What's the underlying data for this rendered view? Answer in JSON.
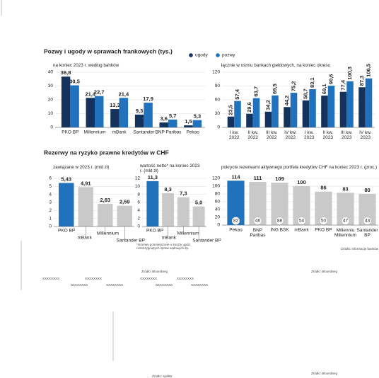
{
  "sections": [
    {
      "title": "Pozwy i ugody w sprawach frankowych (tys.)"
    },
    {
      "title": "Rezerwy na ryzyko prawne kredytów w CHF"
    }
  ],
  "chart_data": [
    {
      "type": "bar",
      "subtitle": "na koniec 2023 r. według banków",
      "categories": [
        "PKO BP",
        "Millennium",
        "mBank",
        "Santander",
        "BNP Paribas",
        "Pekao"
      ],
      "series": [
        {
          "name": "ugody",
          "color": "#14325c",
          "values": [
            36.8,
            21.4,
            13.3,
            9.3,
            3.6,
            1.5
          ],
          "value_labels": [
            "36,8",
            "21,4",
            "13,3",
            "9,3",
            "3,6",
            "1,5"
          ]
        },
        {
          "name": "pozwy",
          "color": "#1f72bb",
          "values": [
            30.5,
            22.7,
            21.4,
            17.9,
            5.7,
            5.3
          ],
          "value_labels": [
            "30,5",
            "22,7",
            "21,4",
            "17,9",
            "5,7",
            "5,3"
          ]
        }
      ],
      "ylim": [
        0,
        40
      ],
      "yticks": [
        0,
        10,
        20,
        30,
        40
      ],
      "grid": true
    },
    {
      "type": "bar",
      "subtitle": "łącznie w ośmiu bankach giełdowych, na koniec okresu",
      "categories": [
        "I kw. 2022",
        "II kw. 2022",
        "III kw. 2022",
        "IV kw. 2022",
        "I kw. 2023",
        "II kw. 2023",
        "III kw. 2023",
        "IV kw. 2023"
      ],
      "series": [
        {
          "name": "ugody",
          "color": "#14325c",
          "values": [
            23.5,
            29.6,
            34.2,
            44.2,
            58.7,
            69.1,
            77.4,
            87.3
          ],
          "value_labels": [
            "23,5",
            "29,6",
            "34,2",
            "44,2",
            "58,7",
            "69,1",
            "77,4",
            "87,3"
          ]
        },
        {
          "name": "pozwy",
          "color": "#1f72bb",
          "values": [
            57.4,
            63.7,
            69.5,
            75.2,
            83.1,
            90.6,
            100.3,
            106.5
          ],
          "value_labels": [
            "57,4",
            "63,7",
            "69,5",
            "75,2",
            "83,1",
            "90,6",
            "100,3",
            "106,5"
          ]
        }
      ],
      "ylim": [
        0,
        120
      ],
      "yticks": [
        0,
        30,
        60,
        90,
        120
      ],
      "grid": true,
      "rotated_labels": true
    },
    {
      "type": "bar",
      "subtitle": "zawiązane w 2023 r. (mld zł)",
      "categories": [
        "PKO BP",
        "mBank",
        "Millennium",
        "Santander BP"
      ],
      "values": [
        5.43,
        4.91,
        2.83,
        2.59
      ],
      "value_labels": [
        "5,43",
        "4,91",
        "2,83",
        "2,59"
      ],
      "colors": [
        "#1f72bb",
        "#c9c9c9",
        "#c9c9c9",
        "#c9c9c9"
      ],
      "ylim": [
        0,
        6
      ],
      "yticks": [
        0,
        1,
        2,
        3,
        4,
        5,
        6
      ],
      "grid": true
    },
    {
      "type": "bar",
      "subtitle": "wartość netto* na koniec 2023 r. (mld zł)",
      "categories": [
        "PKO BP",
        "mBank",
        "Millennium",
        "Santander BP"
      ],
      "values": [
        11.3,
        8.3,
        7.3,
        5.0
      ],
      "value_labels": [
        "11,3",
        "8,3",
        "7,3",
        "5,0"
      ],
      "colors": [
        "#1f72bb",
        "#c9c9c9",
        "#c9c9c9",
        "#c9c9c9"
      ],
      "ylim": [
        0,
        12
      ],
      "yticks": [
        0,
        2,
        4,
        6,
        8,
        10,
        12
      ],
      "grid": true,
      "note": "*rezerwy pomniejszone o koszty ugód, rozstrzygniętych spraw sądowych itp."
    },
    {
      "type": "bar",
      "subtitle": "pokrycie rezerwami aktywnego portfela kredytów CHF na koniec 2023 r. (proc.)",
      "categories": [
        "Pekao",
        "BNP Paribas",
        "ING BSK",
        "mBank",
        "PKO BP",
        "Millennium",
        "Santander BP"
      ],
      "values": [
        114,
        111,
        109,
        100,
        86,
        83,
        80
      ],
      "circle_values": [
        82,
        46,
        88,
        54,
        50,
        47,
        43
      ],
      "colors": [
        "#1f72bb",
        "#c9c9c9",
        "#c9c9c9",
        "#c9c9c9",
        "#c9c9c9",
        "#c9c9c9",
        "#c9c9c9"
      ],
      "ylim": [
        0,
        120
      ],
      "yticks": [
        0,
        20,
        40,
        60,
        80,
        100,
        120
      ],
      "grid": true,
      "source": "Źródło: informacje banków"
    }
  ],
  "footer_texts": [
    "Źródło: Bloomberg",
    "Źródło: Bloomberg",
    "XXXXXXXX",
    "XXXXXXXX",
    "XXXXXXXX",
    "XXXXXXXX",
    "XXXXXXXX",
    "XXXXXXXX",
    "XXXXXXXX",
    "XXXXXXXX",
    "Źródło: spółka",
    "Źródło: Bloomberg"
  ]
}
